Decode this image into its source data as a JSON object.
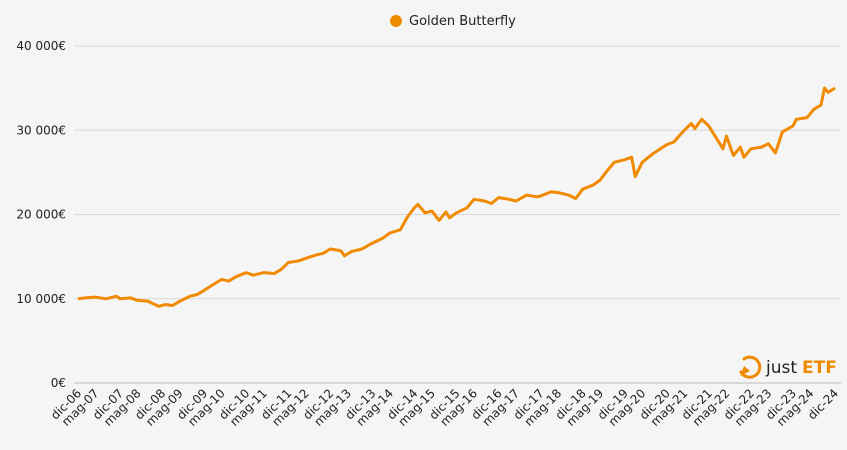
{
  "chart_data": {
    "type": "line",
    "title": "",
    "xlabel": "",
    "ylabel": "",
    "ylim": [
      0,
      40000
    ],
    "yticks": [
      0,
      10000,
      20000,
      30000,
      40000
    ],
    "ytick_labels": [
      "0€",
      "10 000€",
      "20 000€",
      "30 000€",
      "40 000€"
    ],
    "xtick_labels": [
      "dic-06",
      "mag-07",
      "dic-07",
      "mag-08",
      "dic-08",
      "mag-09",
      "dic-09",
      "mag-10",
      "dic-10",
      "mag-11",
      "dic-11",
      "mag-12",
      "dic-12",
      "mag-13",
      "dic-13",
      "mag-14",
      "dic-14",
      "mag-15",
      "dic-15",
      "mag-16",
      "dic-16",
      "mag-17",
      "dic-17",
      "mag-18",
      "dic-18",
      "mag-19",
      "dic-19",
      "mag-20",
      "dic-20",
      "mag-21",
      "dic-21",
      "mag-22",
      "dic-22",
      "mag-23",
      "dic-23",
      "mag-24",
      "dic-24"
    ],
    "x_range": [
      "2006-12",
      "2024-12"
    ],
    "grid": true,
    "legend_position": "top-center",
    "series": [
      {
        "name": "Golden Butterfly",
        "color": "#f08a00",
        "points": [
          [
            "2006-12",
            10000
          ],
          [
            "2007-02",
            10100
          ],
          [
            "2007-05",
            10200
          ],
          [
            "2007-08",
            10000
          ],
          [
            "2007-11",
            10300
          ],
          [
            "2007-12",
            10000
          ],
          [
            "2008-03",
            10100
          ],
          [
            "2008-05",
            9800
          ],
          [
            "2008-08",
            9700
          ],
          [
            "2008-10",
            9300
          ],
          [
            "2008-11",
            9100
          ],
          [
            "2009-01",
            9300
          ],
          [
            "2009-03",
            9200
          ],
          [
            "2009-05",
            9700
          ],
          [
            "2009-08",
            10300
          ],
          [
            "2009-10",
            10500
          ],
          [
            "2009-12",
            11000
          ],
          [
            "2010-03",
            11800
          ],
          [
            "2010-05",
            12300
          ],
          [
            "2010-07",
            12100
          ],
          [
            "2010-09",
            12600
          ],
          [
            "2010-12",
            13100
          ],
          [
            "2011-02",
            12800
          ],
          [
            "2011-05",
            13100
          ],
          [
            "2011-08",
            13000
          ],
          [
            "2011-10",
            13500
          ],
          [
            "2011-12",
            14300
          ],
          [
            "2012-03",
            14500
          ],
          [
            "2012-05",
            14800
          ],
          [
            "2012-08",
            15200
          ],
          [
            "2012-10",
            15400
          ],
          [
            "2012-12",
            15900
          ],
          [
            "2013-03",
            15700
          ],
          [
            "2013-04",
            15100
          ],
          [
            "2013-06",
            15600
          ],
          [
            "2013-09",
            15900
          ],
          [
            "2013-12",
            16600
          ],
          [
            "2014-03",
            17200
          ],
          [
            "2014-05",
            17800
          ],
          [
            "2014-08",
            18200
          ],
          [
            "2014-10",
            19700
          ],
          [
            "2014-12",
            20800
          ],
          [
            "2015-01",
            21200
          ],
          [
            "2015-03",
            20200
          ],
          [
            "2015-05",
            20400
          ],
          [
            "2015-07",
            19300
          ],
          [
            "2015-09",
            20300
          ],
          [
            "2015-10",
            19600
          ],
          [
            "2015-12",
            20200
          ],
          [
            "2016-03",
            20800
          ],
          [
            "2016-05",
            21800
          ],
          [
            "2016-08",
            21600
          ],
          [
            "2016-10",
            21300
          ],
          [
            "2016-12",
            22000
          ],
          [
            "2017-03",
            21800
          ],
          [
            "2017-05",
            21600
          ],
          [
            "2017-08",
            22300
          ],
          [
            "2017-11",
            22100
          ],
          [
            "2017-12",
            22200
          ],
          [
            "2018-03",
            22700
          ],
          [
            "2018-05",
            22600
          ],
          [
            "2018-08",
            22300
          ],
          [
            "2018-10",
            21900
          ],
          [
            "2018-12",
            23000
          ],
          [
            "2019-03",
            23500
          ],
          [
            "2019-05",
            24100
          ],
          [
            "2019-07",
            25200
          ],
          [
            "2019-09",
            26200
          ],
          [
            "2019-12",
            26500
          ],
          [
            "2020-02",
            26800
          ],
          [
            "2020-03",
            24500
          ],
          [
            "2020-05",
            26200
          ],
          [
            "2020-08",
            27200
          ],
          [
            "2020-12",
            28300
          ],
          [
            "2021-02",
            28600
          ],
          [
            "2021-05",
            30000
          ],
          [
            "2021-07",
            30800
          ],
          [
            "2021-08",
            30200
          ],
          [
            "2021-10",
            31300
          ],
          [
            "2021-12",
            30500
          ],
          [
            "2022-03",
            28500
          ],
          [
            "2022-04",
            27800
          ],
          [
            "2022-05",
            29300
          ],
          [
            "2022-07",
            27000
          ],
          [
            "2022-09",
            28000
          ],
          [
            "2022-10",
            26800
          ],
          [
            "2022-12",
            27800
          ],
          [
            "2023-03",
            28000
          ],
          [
            "2023-05",
            28400
          ],
          [
            "2023-07",
            27300
          ],
          [
            "2023-09",
            29800
          ],
          [
            "2023-12",
            30500
          ],
          [
            "2024-01",
            31300
          ],
          [
            "2024-04",
            31500
          ],
          [
            "2024-06",
            32500
          ],
          [
            "2024-08",
            33000
          ],
          [
            "2024-09",
            35000
          ],
          [
            "2024-10",
            34500
          ],
          [
            "2024-12",
            35000
          ]
        ]
      }
    ]
  },
  "logo": {
    "text_just": "just",
    "text_etf": "ETF"
  }
}
